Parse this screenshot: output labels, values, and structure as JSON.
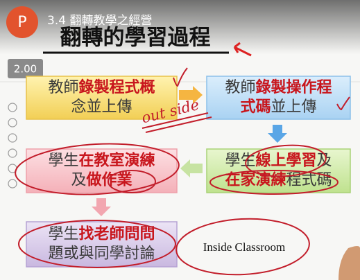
{
  "player": {
    "avatar": "P",
    "video_title": "3.4 翻轉教學之經營",
    "speed": "2.00"
  },
  "slide": {
    "title": "翻轉的學習過程",
    "boxes": [
      {
        "lines": [
          [
            {
              "text": "教師"
            },
            {
              "text": "錄製程式概",
              "emphasis": true
            }
          ],
          [
            {
              "text": "念並上傳"
            }
          ]
        ]
      },
      {
        "lines": [
          [
            {
              "text": "教師"
            },
            {
              "text": "錄製操作程",
              "emphasis": true
            }
          ],
          [
            {
              "text": "式碼",
              "emphasis": true
            },
            {
              "text": "並上傳"
            }
          ]
        ]
      },
      {
        "lines": [
          [
            {
              "text": "學生"
            },
            {
              "text": "線上學習",
              "emphasis": true
            },
            {
              "text": "及"
            }
          ],
          [
            {
              "text": "在家演練",
              "emphasis": true
            },
            {
              "text": "程式碼"
            }
          ]
        ]
      },
      {
        "lines": [
          [
            {
              "text": "學生"
            },
            {
              "text": "在教室演練",
              "emphasis": true
            }
          ],
          [
            {
              "text": "及"
            },
            {
              "text": "做作業",
              "emphasis": true
            }
          ]
        ]
      },
      {
        "lines": [
          [
            {
              "text": "學生"
            },
            {
              "text": "找老師問問",
              "emphasis": true
            }
          ],
          [
            {
              "text": "題或與同學討論"
            }
          ]
        ]
      }
    ],
    "annotations": {
      "outside": "out side",
      "inside": "Inside Classroom"
    }
  }
}
